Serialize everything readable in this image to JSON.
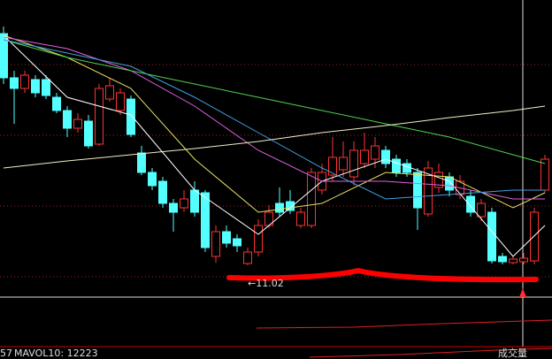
{
  "chart_data": {
    "type": "candlestick",
    "ohlc": [
      [
        13.64,
        13.72,
        13.07,
        13.14
      ],
      [
        13.14,
        13.22,
        12.62,
        13.02
      ],
      [
        13.02,
        13.22,
        12.97,
        13.17
      ],
      [
        13.12,
        13.17,
        12.92,
        12.97
      ],
      [
        13.12,
        13.17,
        12.9,
        12.94
      ],
      [
        12.92,
        12.97,
        12.74,
        12.77
      ],
      [
        12.77,
        12.82,
        12.47,
        12.57
      ],
      [
        12.57,
        12.74,
        12.52,
        12.67
      ],
      [
        12.65,
        12.72,
        12.34,
        12.37
      ],
      [
        12.39,
        13.07,
        12.37,
        13.02
      ],
      [
        12.9,
        13.14,
        12.87,
        13.05
      ],
      [
        12.77,
        13.02,
        12.72,
        12.97
      ],
      [
        12.9,
        12.94,
        12.47,
        12.5
      ],
      [
        12.29,
        12.37,
        12.04,
        12.07
      ],
      [
        12.07,
        12.12,
        11.87,
        11.92
      ],
      [
        11.97,
        12.02,
        11.67,
        11.72
      ],
      [
        11.72,
        11.77,
        11.4,
        11.62
      ],
      [
        11.67,
        11.87,
        11.62,
        11.77
      ],
      [
        11.87,
        11.97,
        11.57,
        11.62
      ],
      [
        11.84,
        11.87,
        11.17,
        11.22
      ],
      [
        11.12,
        11.47,
        11.05,
        11.4
      ],
      [
        11.4,
        11.47,
        11.22,
        11.27
      ],
      [
        11.32,
        11.37,
        11.17,
        11.24
      ],
      [
        11.04,
        11.22,
        11.02,
        11.17
      ],
      [
        11.17,
        11.54,
        11.12,
        11.47
      ],
      [
        11.47,
        11.7,
        11.44,
        11.62
      ],
      [
        11.72,
        11.9,
        11.57,
        11.62
      ],
      [
        11.74,
        11.87,
        11.6,
        11.64
      ],
      [
        11.47,
        11.67,
        11.44,
        11.62
      ],
      [
        11.47,
        12.12,
        11.44,
        12.07
      ],
      [
        11.87,
        12.17,
        11.82,
        12.07
      ],
      [
        12.04,
        12.47,
        11.97,
        12.24
      ],
      [
        12.1,
        12.42,
        12.02,
        12.24
      ],
      [
        12.02,
        12.42,
        11.92,
        12.32
      ],
      [
        12.17,
        12.52,
        12.12,
        12.32
      ],
      [
        12.22,
        12.47,
        12.12,
        12.37
      ],
      [
        12.32,
        12.37,
        12.12,
        12.17
      ],
      [
        12.22,
        12.27,
        12.02,
        12.07
      ],
      [
        12.17,
        12.22,
        12.02,
        12.07
      ],
      [
        12.07,
        12.12,
        11.42,
        11.67
      ],
      [
        11.6,
        12.2,
        11.57,
        12.12
      ],
      [
        11.9,
        12.17,
        11.84,
        12.07
      ],
      [
        12.02,
        12.07,
        11.8,
        11.87
      ],
      [
        11.82,
        12.04,
        11.77,
        11.97
      ],
      [
        11.8,
        11.87,
        11.57,
        11.62
      ],
      [
        11.57,
        11.77,
        11.52,
        11.72
      ],
      [
        11.62,
        11.67,
        11.04,
        11.07
      ],
      [
        11.12,
        11.16,
        11.03,
        11.06
      ],
      [
        11.05,
        11.12,
        11.03,
        11.09
      ],
      [
        11.06,
        11.16,
        11.03,
        11.1
      ],
      [
        11.07,
        11.67,
        11.03,
        11.62
      ],
      [
        11.87,
        12.27,
        11.84,
        12.22
      ]
    ],
    "up_color": "#ff3232",
    "down_color": "#54ffff",
    "ylim": [
      10.66,
      14.02
    ],
    "price_gridlines": [
      13.29,
      12.49,
      11.69,
      10.89
    ],
    "line_x": [
      0,
      6,
      12,
      18,
      24,
      30,
      36,
      42,
      48,
      51
    ],
    "lines": [
      {
        "color": "#ffffff",
        "values": [
          13.62,
          12.92,
          12.72,
          11.87,
          11.37,
          11.97,
          12.22,
          11.97,
          11.12,
          11.47
        ]
      },
      {
        "color": "#e8e060",
        "values": [
          13.62,
          13.37,
          13.02,
          12.22,
          11.62,
          11.72,
          12.07,
          12.02,
          11.67,
          11.84
        ]
      },
      {
        "color": "#e060e0",
        "values": [
          13.6,
          13.47,
          13.22,
          12.82,
          12.32,
          11.97,
          11.97,
          11.92,
          11.77,
          11.77
        ]
      },
      {
        "color": "#50d050",
        "values": [
          13.57,
          13.37,
          13.22,
          13.07,
          12.92,
          12.77,
          12.62,
          12.47,
          12.27,
          12.17
        ]
      },
      {
        "color": "#40a0e0",
        "values": [
          13.57,
          13.42,
          13.27,
          12.92,
          12.52,
          12.12,
          11.77,
          11.82,
          11.87,
          11.87
        ]
      },
      {
        "color": "#f0f0c8",
        "values": [
          12.12,
          12.2,
          12.27,
          12.34,
          12.42,
          12.52,
          12.6,
          12.69,
          12.77,
          12.82
        ]
      }
    ],
    "low_label": "←11.02",
    "volume_legend_left": "57",
    "volume_legend": "MAVOL10: 12223",
    "volume_title": "成交量"
  }
}
